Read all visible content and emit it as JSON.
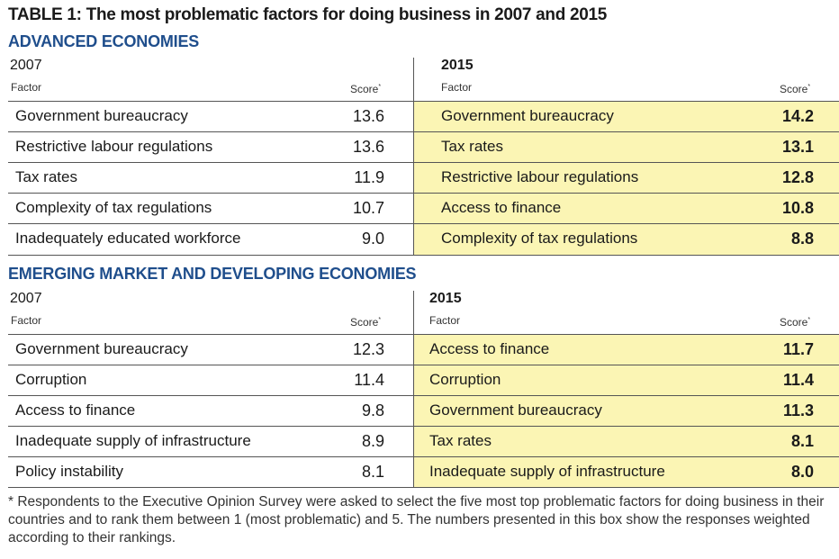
{
  "title": "TABLE 1: The most problematic factors for doing business in 2007 and 2015",
  "column_labels": {
    "factor": "Factor",
    "score": "Score"
  },
  "score_marker": "*",
  "sections": [
    {
      "heading": "ADVANCED ECONOMIES",
      "left": {
        "year": "2007",
        "rows": [
          {
            "factor": "Government bureaucracy",
            "score": "13.6"
          },
          {
            "factor": "Restrictive labour regulations",
            "score": "13.6"
          },
          {
            "factor": "Tax rates",
            "score": "11.9"
          },
          {
            "factor": "Complexity of tax regulations",
            "score": "10.7"
          },
          {
            "factor": "Inadequately educated workforce",
            "score": "9.0"
          }
        ]
      },
      "right": {
        "year": "2015",
        "rows": [
          {
            "factor": "Government bureaucracy",
            "score": "14.2"
          },
          {
            "factor": "Tax rates",
            "score": "13.1"
          },
          {
            "factor": "Restrictive labour regulations",
            "score": "12.8"
          },
          {
            "factor": "Access to finance",
            "score": "10.8"
          },
          {
            "factor": "Complexity of tax regulations",
            "score": "8.8"
          }
        ]
      }
    },
    {
      "heading": "EMERGING MARKET AND DEVELOPING ECONOMIES",
      "left": {
        "year": "2007",
        "rows": [
          {
            "factor": "Government bureaucracy",
            "score": "12.3"
          },
          {
            "factor": "Corruption",
            "score": "11.4"
          },
          {
            "factor": "Access to finance",
            "score": "9.8"
          },
          {
            "factor": "Inadequate supply of infrastructure",
            "score": "8.9"
          },
          {
            "factor": "Policy instability",
            "score": "8.1"
          }
        ]
      },
      "right": {
        "year": "2015",
        "rows": [
          {
            "factor": "Access to finance",
            "score": "11.7"
          },
          {
            "factor": "Corruption",
            "score": "11.4"
          },
          {
            "factor": "Government bureaucracy",
            "score": "11.3"
          },
          {
            "factor": "Tax rates",
            "score": "8.1"
          },
          {
            "factor": "Inadequate supply of infrastructure",
            "score": "8.0"
          }
        ]
      }
    }
  ],
  "footnote": "* Respondents to the Executive Opinion Survey were asked to select the five most top problematic factors for doing business in their countries and to rank them between 1 (most problematic) and 5. The numbers presented in this box show the responses weighted according to their rankings.",
  "colors": {
    "highlight": "#fbf5b4",
    "heading_blue": "#1f4e8c"
  }
}
